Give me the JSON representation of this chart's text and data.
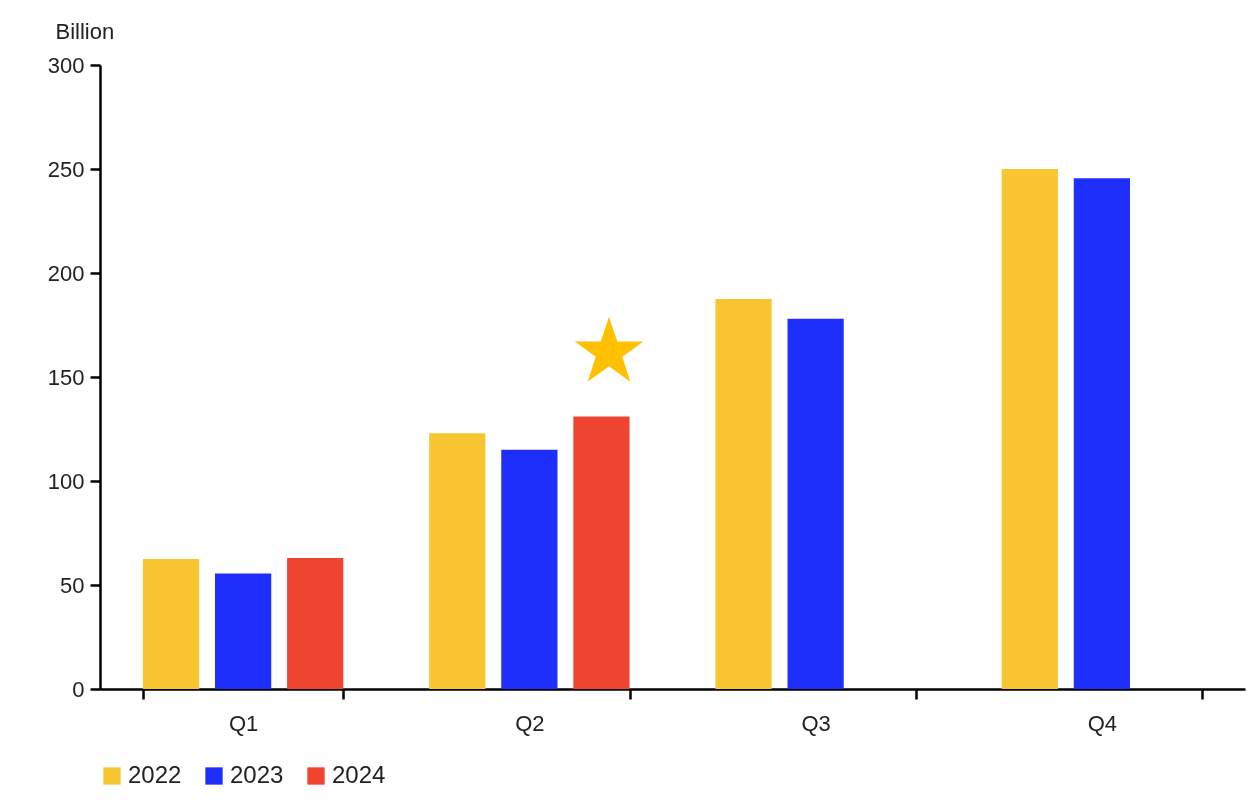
{
  "chart_data": {
    "type": "bar",
    "ylabel": "Billion",
    "categories": [
      "Q1",
      "Q2",
      "Q3",
      "Q4"
    ],
    "series": [
      {
        "name": "2022",
        "color": "#f8c630",
        "values": [
          62.5,
          123,
          187.5,
          250
        ]
      },
      {
        "name": "2023",
        "color": "#1f2ffb",
        "values": [
          55.5,
          115,
          178,
          245.5
        ]
      },
      {
        "name": "2024",
        "color": "#ef4430",
        "values": [
          63,
          131,
          null,
          null
        ]
      }
    ],
    "ylim": [
      0,
      300
    ],
    "yticks": [
      0,
      50,
      100,
      150,
      200,
      250,
      300
    ],
    "grid": false,
    "legend": "bottom"
  }
}
